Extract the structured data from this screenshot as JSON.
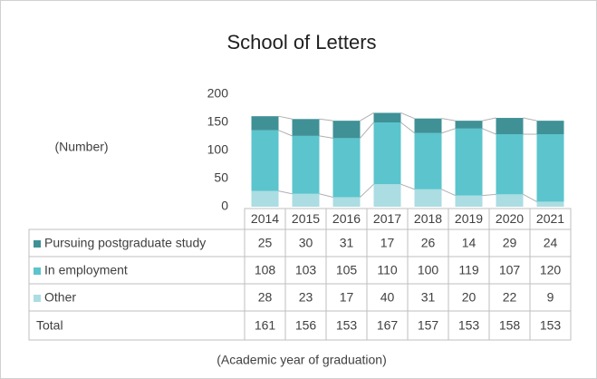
{
  "chart_data": {
    "type": "stacked_bar",
    "title": "School of Letters",
    "y_label": "(Number)",
    "x_label": "(Academic year of graduation)",
    "categories": [
      "2014",
      "2015",
      "2016",
      "2017",
      "2018",
      "2019",
      "2020",
      "2021"
    ],
    "series": [
      {
        "name": "Pursuing postgraduate study",
        "color": "#3f9196",
        "values": [
          25,
          30,
          31,
          17,
          26,
          14,
          29,
          24
        ]
      },
      {
        "name": "In employment",
        "color": "#5bc4cc",
        "values": [
          108,
          103,
          105,
          110,
          100,
          119,
          107,
          120
        ]
      },
      {
        "name": "Other",
        "color": "#abdde3",
        "values": [
          28,
          23,
          17,
          40,
          31,
          20,
          22,
          9
        ]
      }
    ],
    "total_label": "Total",
    "totals": [
      161,
      156,
      153,
      167,
      157,
      153,
      158,
      153
    ],
    "ylim": [
      0,
      200
    ],
    "yticks": [
      0,
      50,
      100,
      150,
      200
    ],
    "grid": false
  }
}
